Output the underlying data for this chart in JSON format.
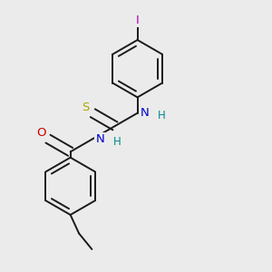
{
  "bg_color": "#ebebeb",
  "bond_color": "#1a1a1a",
  "bond_width": 1.4,
  "atoms": {
    "I": {
      "color": "#aa00aa",
      "fontsize": 9.5
    },
    "N": {
      "color": "#0000cc",
      "fontsize": 9.5
    },
    "H": {
      "color": "#008888",
      "fontsize": 8.5
    },
    "O": {
      "color": "#cc0000",
      "fontsize": 9.5
    },
    "S": {
      "color": "#aaaa00",
      "fontsize": 9.5
    }
  },
  "figsize": [
    3.0,
    3.0
  ],
  "dpi": 100,
  "xlim": [
    0.15,
    0.85
  ],
  "ylim": [
    0.03,
    0.97
  ]
}
